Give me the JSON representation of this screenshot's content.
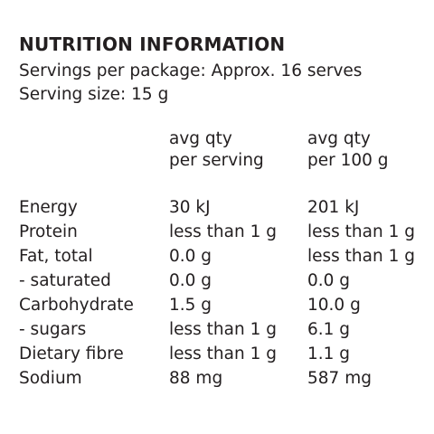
{
  "title": "NUTRITION INFORMATION",
  "servings_per_package": "Servings per package: Approx. 16 serves",
  "serving_size": "Serving size: 15 g",
  "columns": {
    "per_serving": [
      "avg qty",
      "per serving"
    ],
    "per_100g": [
      "avg qty",
      "per 100 g"
    ]
  },
  "rows": [
    {
      "label": "Energy",
      "per_serving": "30 kJ",
      "per_100g": "201 kJ"
    },
    {
      "label": "Protein",
      "per_serving": "less than 1 g",
      "per_100g": "less than 1 g"
    },
    {
      "label": "Fat, total",
      "per_serving": "0.0 g",
      "per_100g": "less than 1 g"
    },
    {
      "label": "- saturated",
      "per_serving": "0.0 g",
      "per_100g": "0.0 g"
    },
    {
      "label": "Carbohydrate",
      "per_serving": "1.5 g",
      "per_100g": "10.0 g"
    },
    {
      "label": "- sugars",
      "per_serving": "less than 1 g",
      "per_100g": "6.1 g"
    },
    {
      "label": "Dietary fibre",
      "per_serving": "less than 1 g",
      "per_100g": "1.1 g"
    },
    {
      "label": "Sodium",
      "per_serving": "88 mg",
      "per_100g": "587 mg"
    }
  ]
}
